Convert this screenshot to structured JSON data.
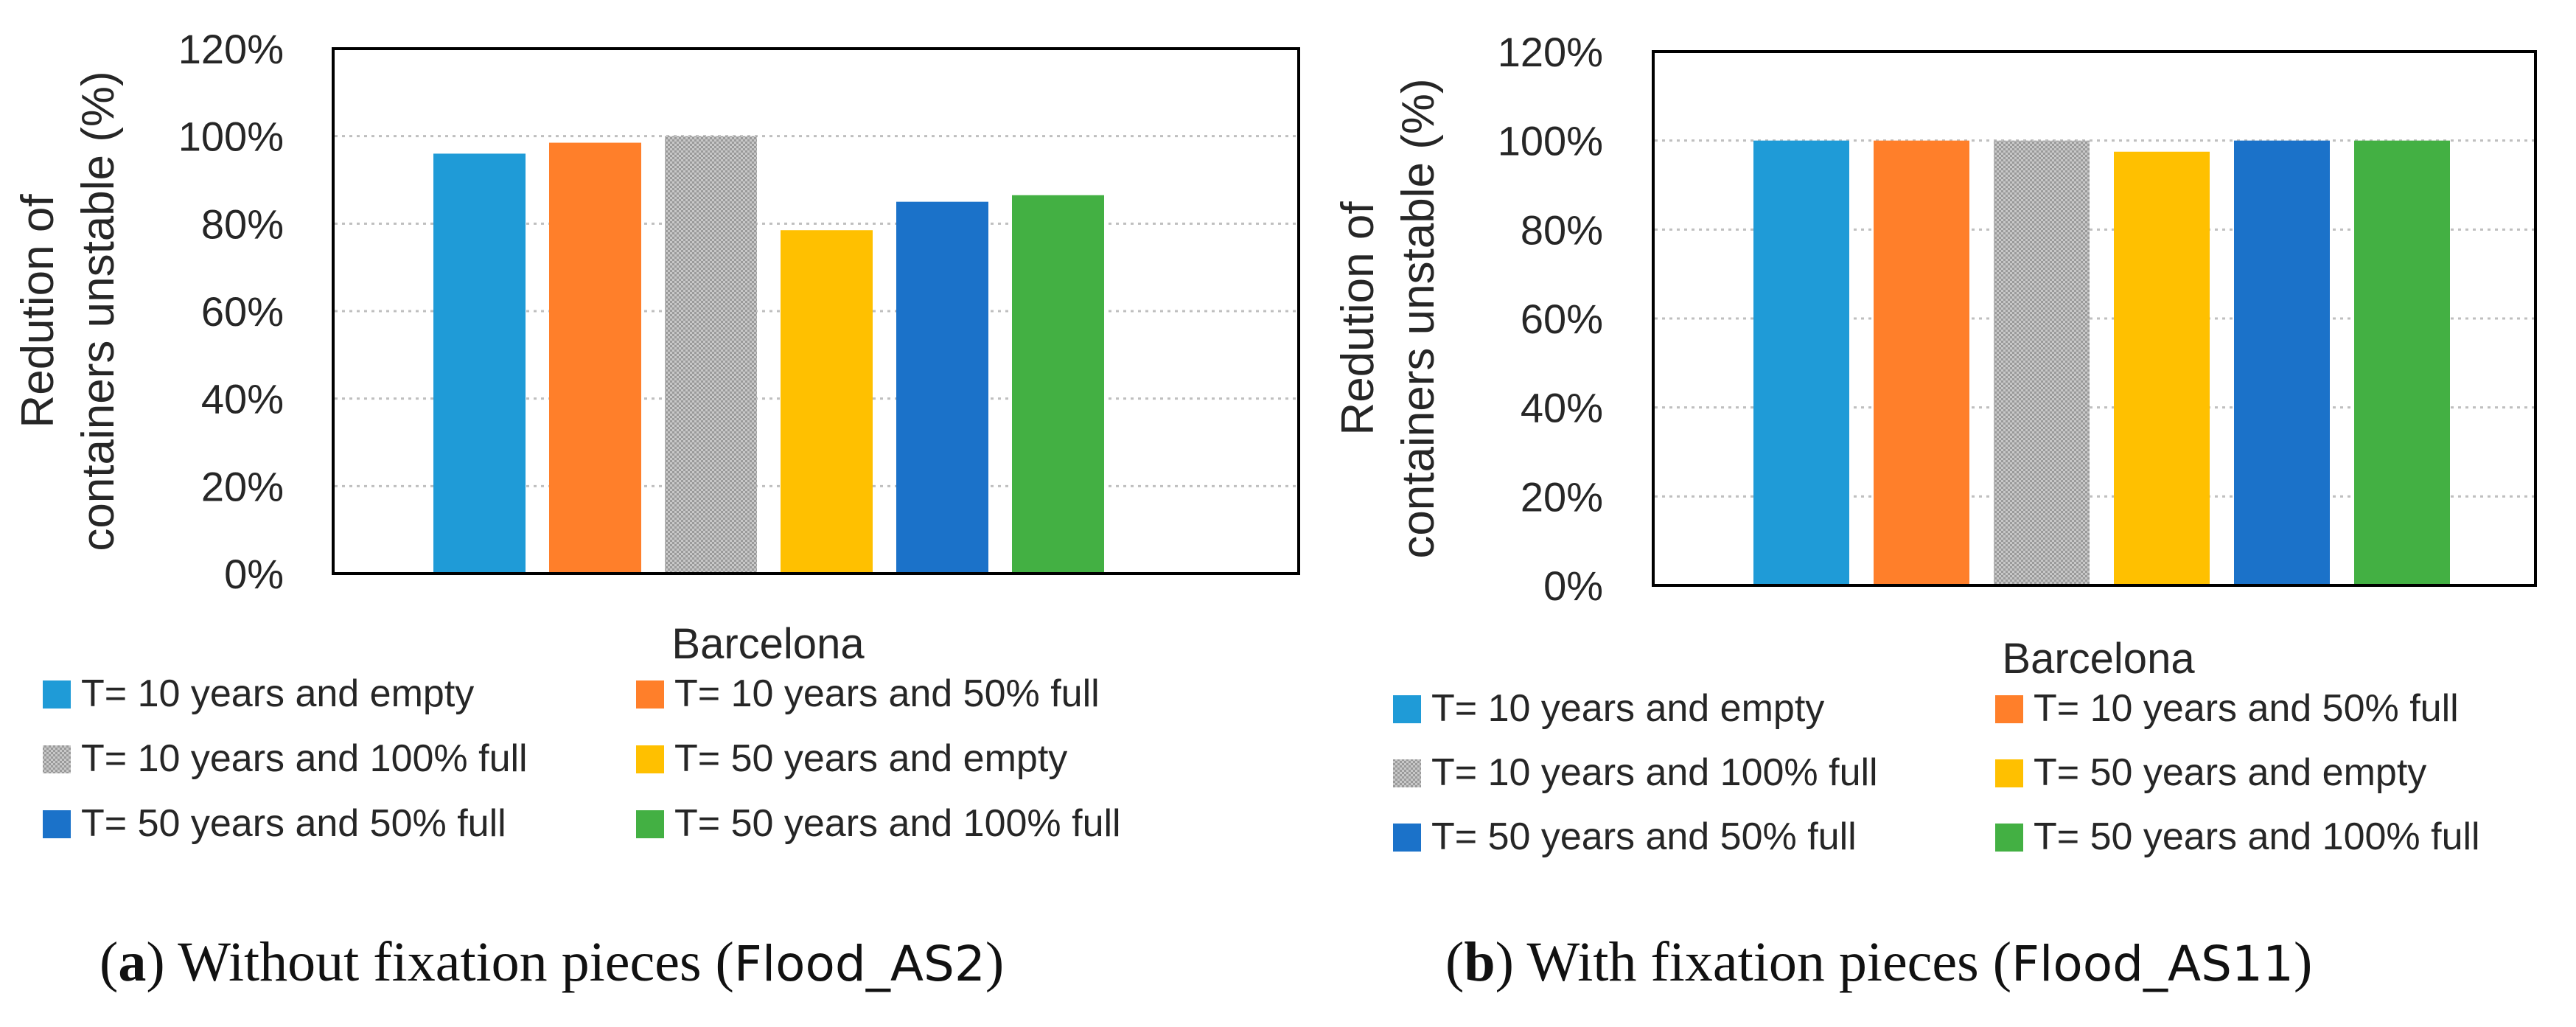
{
  "colors": {
    "s1": "#1f9bd7",
    "s2": "#ff7f2a",
    "s3": "#a6a6a6",
    "s4": "#ffc000",
    "s5": "#1b72c9",
    "s6": "#43b043",
    "gridline": "#bfbfbf",
    "axis": "#000000"
  },
  "chart_data": [
    {
      "type": "bar",
      "panel": "a",
      "caption_letter": "a",
      "caption_pre": "(",
      "caption_post": ") Without fixation pieces (",
      "caption_code": "Flood_AS2",
      "caption_end": ")",
      "categories": [
        "Barcelona"
      ],
      "ylabel_line1": "Redution of",
      "ylabel_line2": "containers unstable (%)",
      "xlabel": "",
      "ylim": [
        0,
        1.2
      ],
      "yticks": [
        0,
        0.2,
        0.4,
        0.6,
        0.8,
        1.0,
        1.2
      ],
      "ytick_labels": [
        "0%",
        "20%",
        "40%",
        "60%",
        "80%",
        "100%",
        "120%"
      ],
      "grid": true,
      "legend_position": "bottom",
      "series": [
        {
          "name": "T= 10 years and empty",
          "values": [
            0.96
          ]
        },
        {
          "name": "T= 10 years and 50% full",
          "values": [
            0.985
          ]
        },
        {
          "name": "T= 10 years and 100% full",
          "values": [
            1.0
          ]
        },
        {
          "name": "T= 50 years and empty",
          "values": [
            0.785
          ]
        },
        {
          "name": "T= 50 years and 50% full",
          "values": [
            0.85
          ]
        },
        {
          "name": "T= 50 years and 100% full",
          "values": [
            0.865
          ]
        }
      ]
    },
    {
      "type": "bar",
      "panel": "b",
      "caption_letter": "b",
      "caption_pre": "(",
      "caption_post": ") With fixation pieces (",
      "caption_code": "Flood_AS11",
      "caption_end": ")",
      "categories": [
        "Barcelona"
      ],
      "ylabel_line1": "Redution of",
      "ylabel_line2": "containers unstable (%)",
      "xlabel": "",
      "ylim": [
        0,
        1.2
      ],
      "yticks": [
        0,
        0.2,
        0.4,
        0.6,
        0.8,
        1.0,
        1.2
      ],
      "ytick_labels": [
        "0%",
        "20%",
        "40%",
        "60%",
        "80%",
        "100%",
        "120%"
      ],
      "grid": true,
      "legend_position": "bottom",
      "series": [
        {
          "name": "T= 10 years and empty",
          "values": [
            1.0
          ]
        },
        {
          "name": "T= 10 years and 50% full",
          "values": [
            1.0
          ]
        },
        {
          "name": "T= 10 years and 100% full",
          "values": [
            1.0
          ]
        },
        {
          "name": "T= 50 years and empty",
          "values": [
            0.975
          ]
        },
        {
          "name": "T= 50 years and 50% full",
          "values": [
            1.0
          ]
        },
        {
          "name": "T= 50 years and 100% full",
          "values": [
            1.0
          ]
        }
      ]
    }
  ]
}
